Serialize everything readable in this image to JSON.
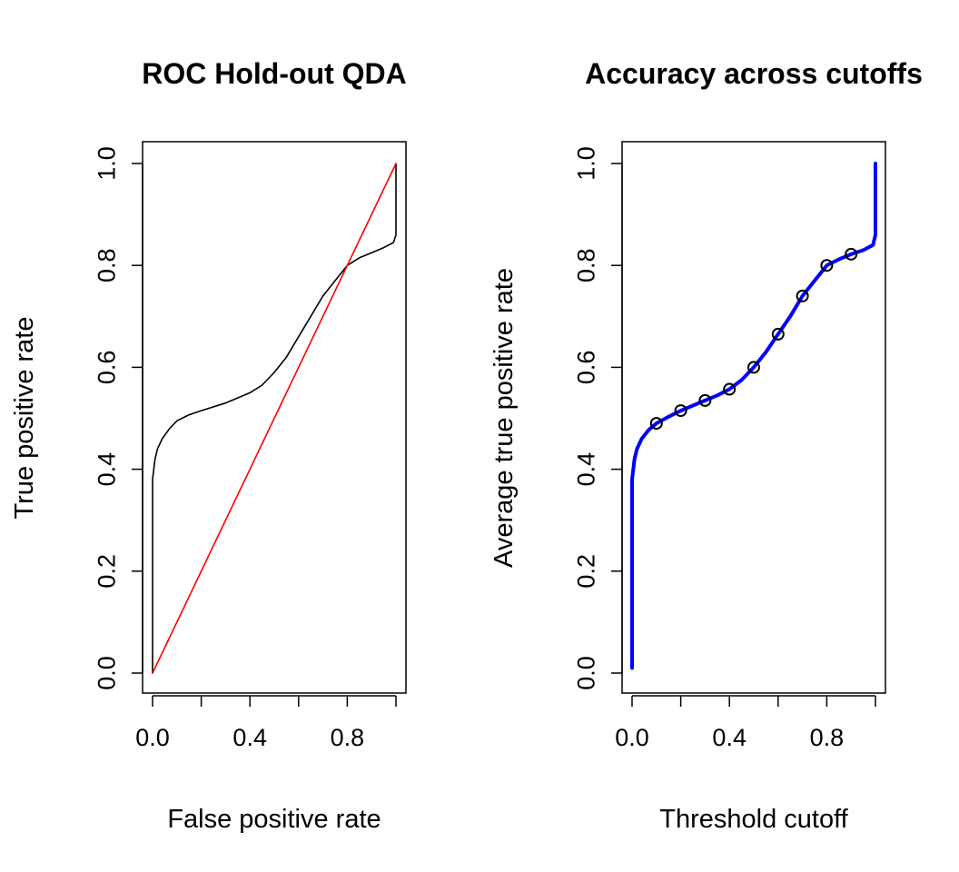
{
  "chart_data": [
    {
      "type": "line",
      "title": "ROC Hold-out QDA",
      "xlabel": "False positive rate",
      "ylabel": "True positive rate",
      "xlim": [
        0,
        1
      ],
      "ylim": [
        0,
        1
      ],
      "x_ticks": [
        "0.0",
        "0.4",
        "0.8"
      ],
      "x_tick_values": [
        0,
        0.2,
        0.4,
        0.6,
        0.8,
        1.0
      ],
      "y_ticks": [
        "0.0",
        "0.2",
        "0.4",
        "0.6",
        "0.8",
        "1.0"
      ],
      "grid": false,
      "series": [
        {
          "color": "#000000",
          "points": [
            [
              0,
              0
            ],
            [
              0,
              0.38
            ],
            [
              0.01,
              0.42
            ],
            [
              0.02,
              0.44
            ],
            [
              0.04,
              0.46
            ],
            [
              0.07,
              0.48
            ],
            [
              0.1,
              0.495
            ],
            [
              0.15,
              0.507
            ],
            [
              0.2,
              0.515
            ],
            [
              0.3,
              0.53
            ],
            [
              0.4,
              0.55
            ],
            [
              0.45,
              0.565
            ],
            [
              0.5,
              0.59
            ],
            [
              0.55,
              0.62
            ],
            [
              0.6,
              0.66
            ],
            [
              0.65,
              0.7
            ],
            [
              0.7,
              0.74
            ],
            [
              0.75,
              0.77
            ],
            [
              0.8,
              0.8
            ],
            [
              0.85,
              0.815
            ],
            [
              0.9,
              0.825
            ],
            [
              0.95,
              0.835
            ],
            [
              0.99,
              0.845
            ],
            [
              1,
              0.86
            ],
            [
              1,
              1
            ]
          ]
        },
        {
          "color": "#ff0000",
          "points": [
            [
              0,
              0
            ],
            [
              1,
              1
            ]
          ]
        }
      ]
    },
    {
      "type": "line",
      "title": "Accuracy across cutoffs",
      "xlabel": "Threshold cutoff",
      "ylabel": "Average true positive rate",
      "xlim": [
        0,
        1
      ],
      "ylim": [
        0,
        1
      ],
      "x_ticks": [
        "0.0",
        "0.4",
        "0.8"
      ],
      "x_tick_values": [
        0,
        0.2,
        0.4,
        0.6,
        0.8,
        1.0
      ],
      "y_ticks": [
        "0.0",
        "0.2",
        "0.4",
        "0.6",
        "0.8",
        "1.0"
      ],
      "grid": false,
      "series": [
        {
          "color": "#0000ff",
          "points": [
            [
              0,
              0.01
            ],
            [
              0,
              0.38
            ],
            [
              0.01,
              0.42
            ],
            [
              0.02,
              0.44
            ],
            [
              0.04,
              0.46
            ],
            [
              0.07,
              0.478
            ],
            [
              0.1,
              0.49
            ],
            [
              0.15,
              0.503
            ],
            [
              0.2,
              0.515
            ],
            [
              0.25,
              0.525
            ],
            [
              0.3,
              0.535
            ],
            [
              0.35,
              0.545
            ],
            [
              0.4,
              0.557
            ],
            [
              0.45,
              0.575
            ],
            [
              0.5,
              0.6
            ],
            [
              0.55,
              0.63
            ],
            [
              0.6,
              0.665
            ],
            [
              0.65,
              0.7
            ],
            [
              0.7,
              0.74
            ],
            [
              0.75,
              0.77
            ],
            [
              0.8,
              0.8
            ],
            [
              0.85,
              0.812
            ],
            [
              0.9,
              0.822
            ],
            [
              0.95,
              0.83
            ],
            [
              0.99,
              0.84
            ],
            [
              1,
              0.86
            ],
            [
              1,
              1
            ]
          ]
        }
      ],
      "markers": {
        "x": [
          0.1,
          0.2,
          0.3,
          0.4,
          0.5,
          0.6,
          0.7,
          0.8,
          0.9
        ],
        "y": [
          0.49,
          0.515,
          0.535,
          0.557,
          0.6,
          0.665,
          0.74,
          0.8,
          0.822
        ]
      }
    }
  ]
}
